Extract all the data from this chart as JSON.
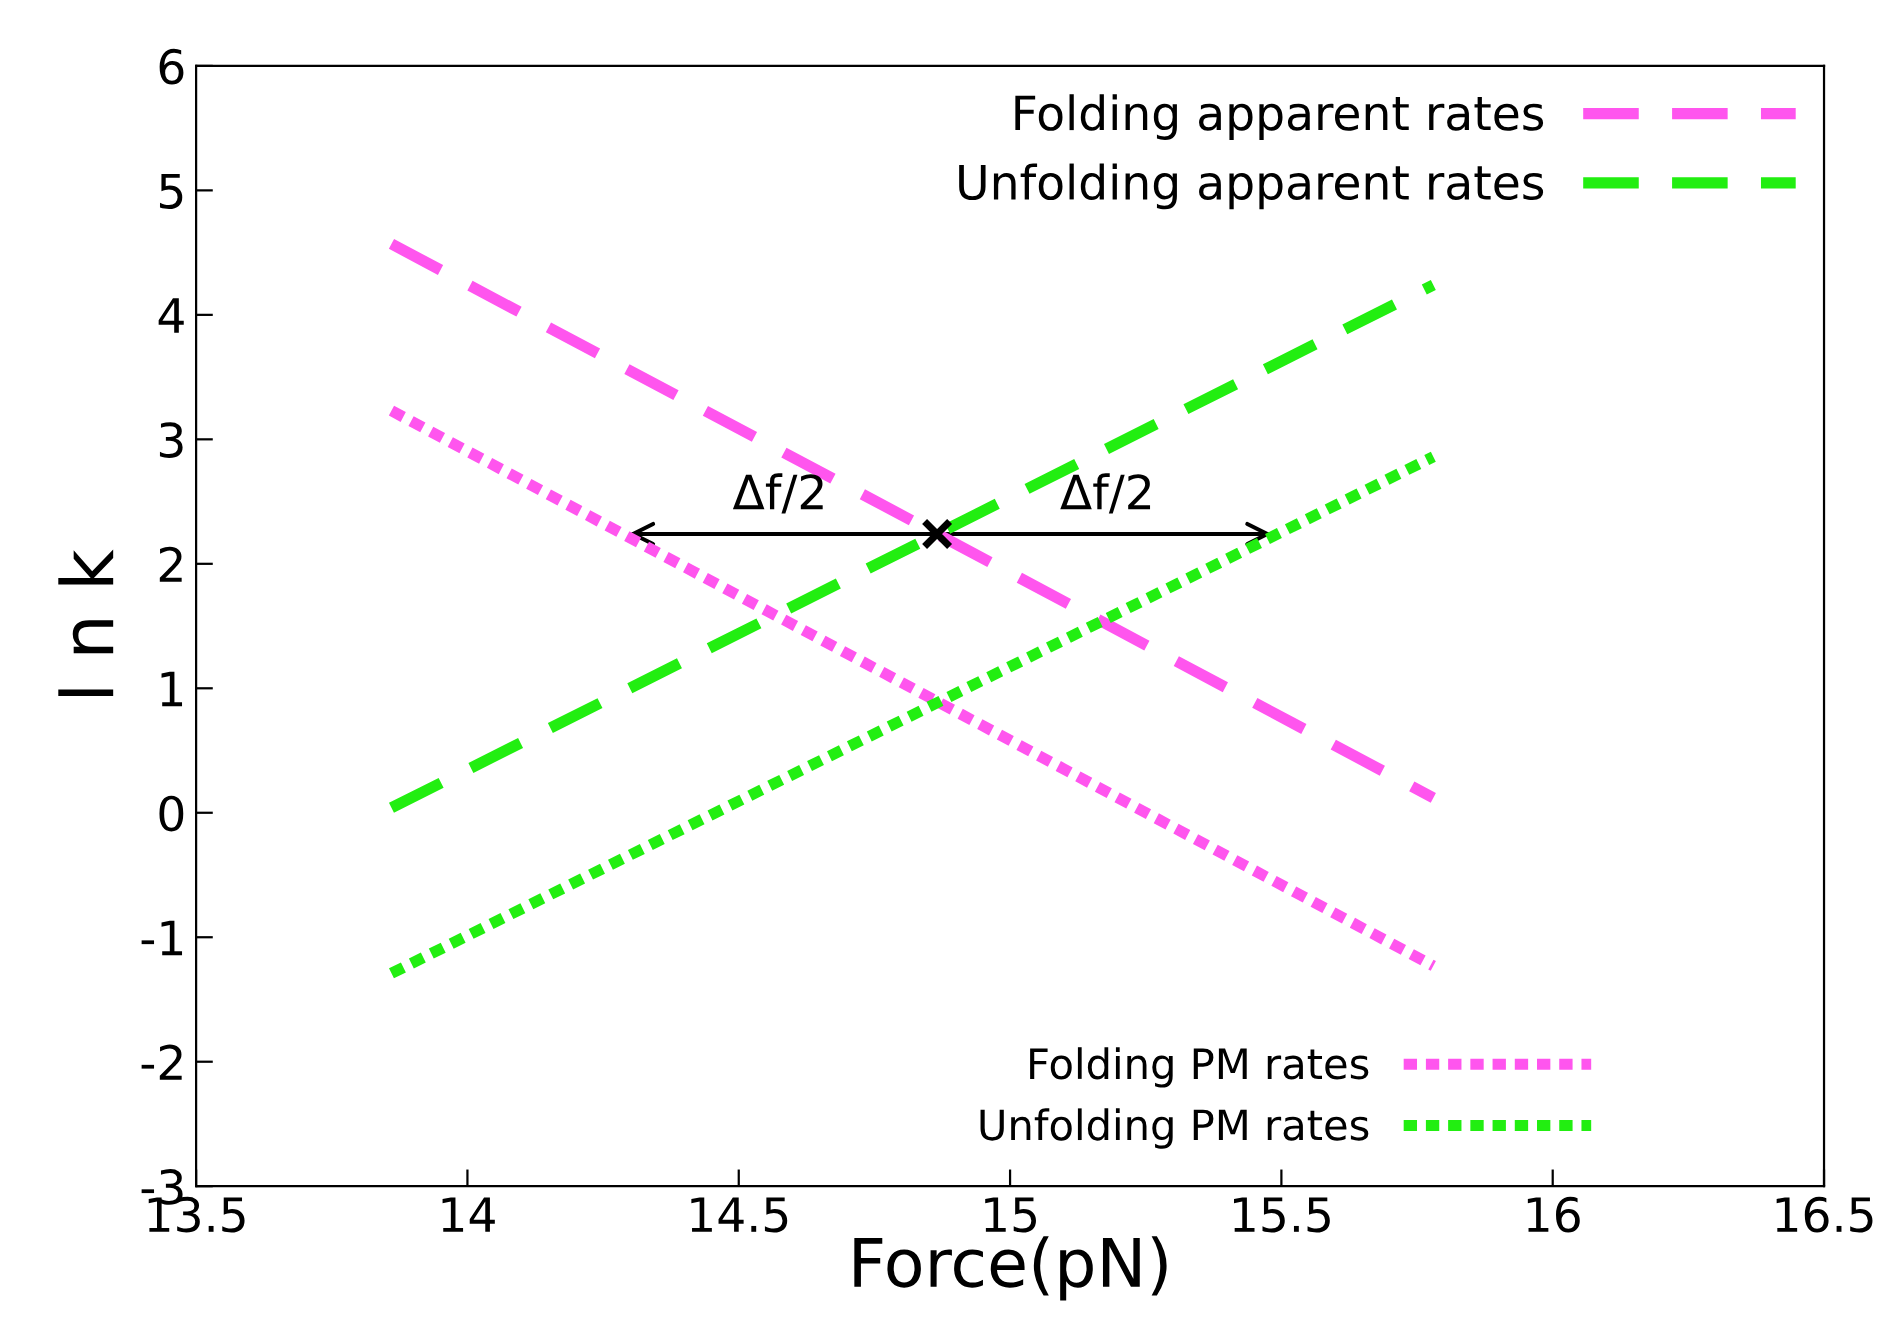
{
  "chart_data": {
    "type": "line",
    "xlabel": "Force(pN)",
    "ylabel": "l n k",
    "xlim": [
      13.5,
      16.5
    ],
    "xticks": [
      13.5,
      14,
      14.5,
      15,
      15.5,
      16,
      16.5
    ],
    "ylim": [
      -3,
      6
    ],
    "yticks": [
      -3,
      -2,
      -1,
      0,
      1,
      2,
      3,
      4,
      5,
      6
    ],
    "grid": false,
    "legend": "top right",
    "marker": "none",
    "x": [
      13.86,
      15.78
    ],
    "series": [
      {
        "name": "Folding apparent rates",
        "color": "#ff55ee",
        "line_style": "dashed",
        "values": [
          4.57,
          0.12
        ]
      },
      {
        "name": "Unfolding apparent rates",
        "color": "#22ee11",
        "line_style": "dashed",
        "values": [
          0.04,
          4.24
        ]
      },
      {
        "name": "Folding PM rates",
        "color": "#ff55ee",
        "line_style": "dotted",
        "values": [
          3.23,
          -1.23
        ]
      },
      {
        "name": "Unfolding PM rates",
        "color": "#22ee11",
        "line_style": "dotted",
        "values": [
          -1.29,
          2.86
        ]
      }
    ],
    "annotations": [
      "Δf/2",
      "Δf/2"
    ]
  }
}
